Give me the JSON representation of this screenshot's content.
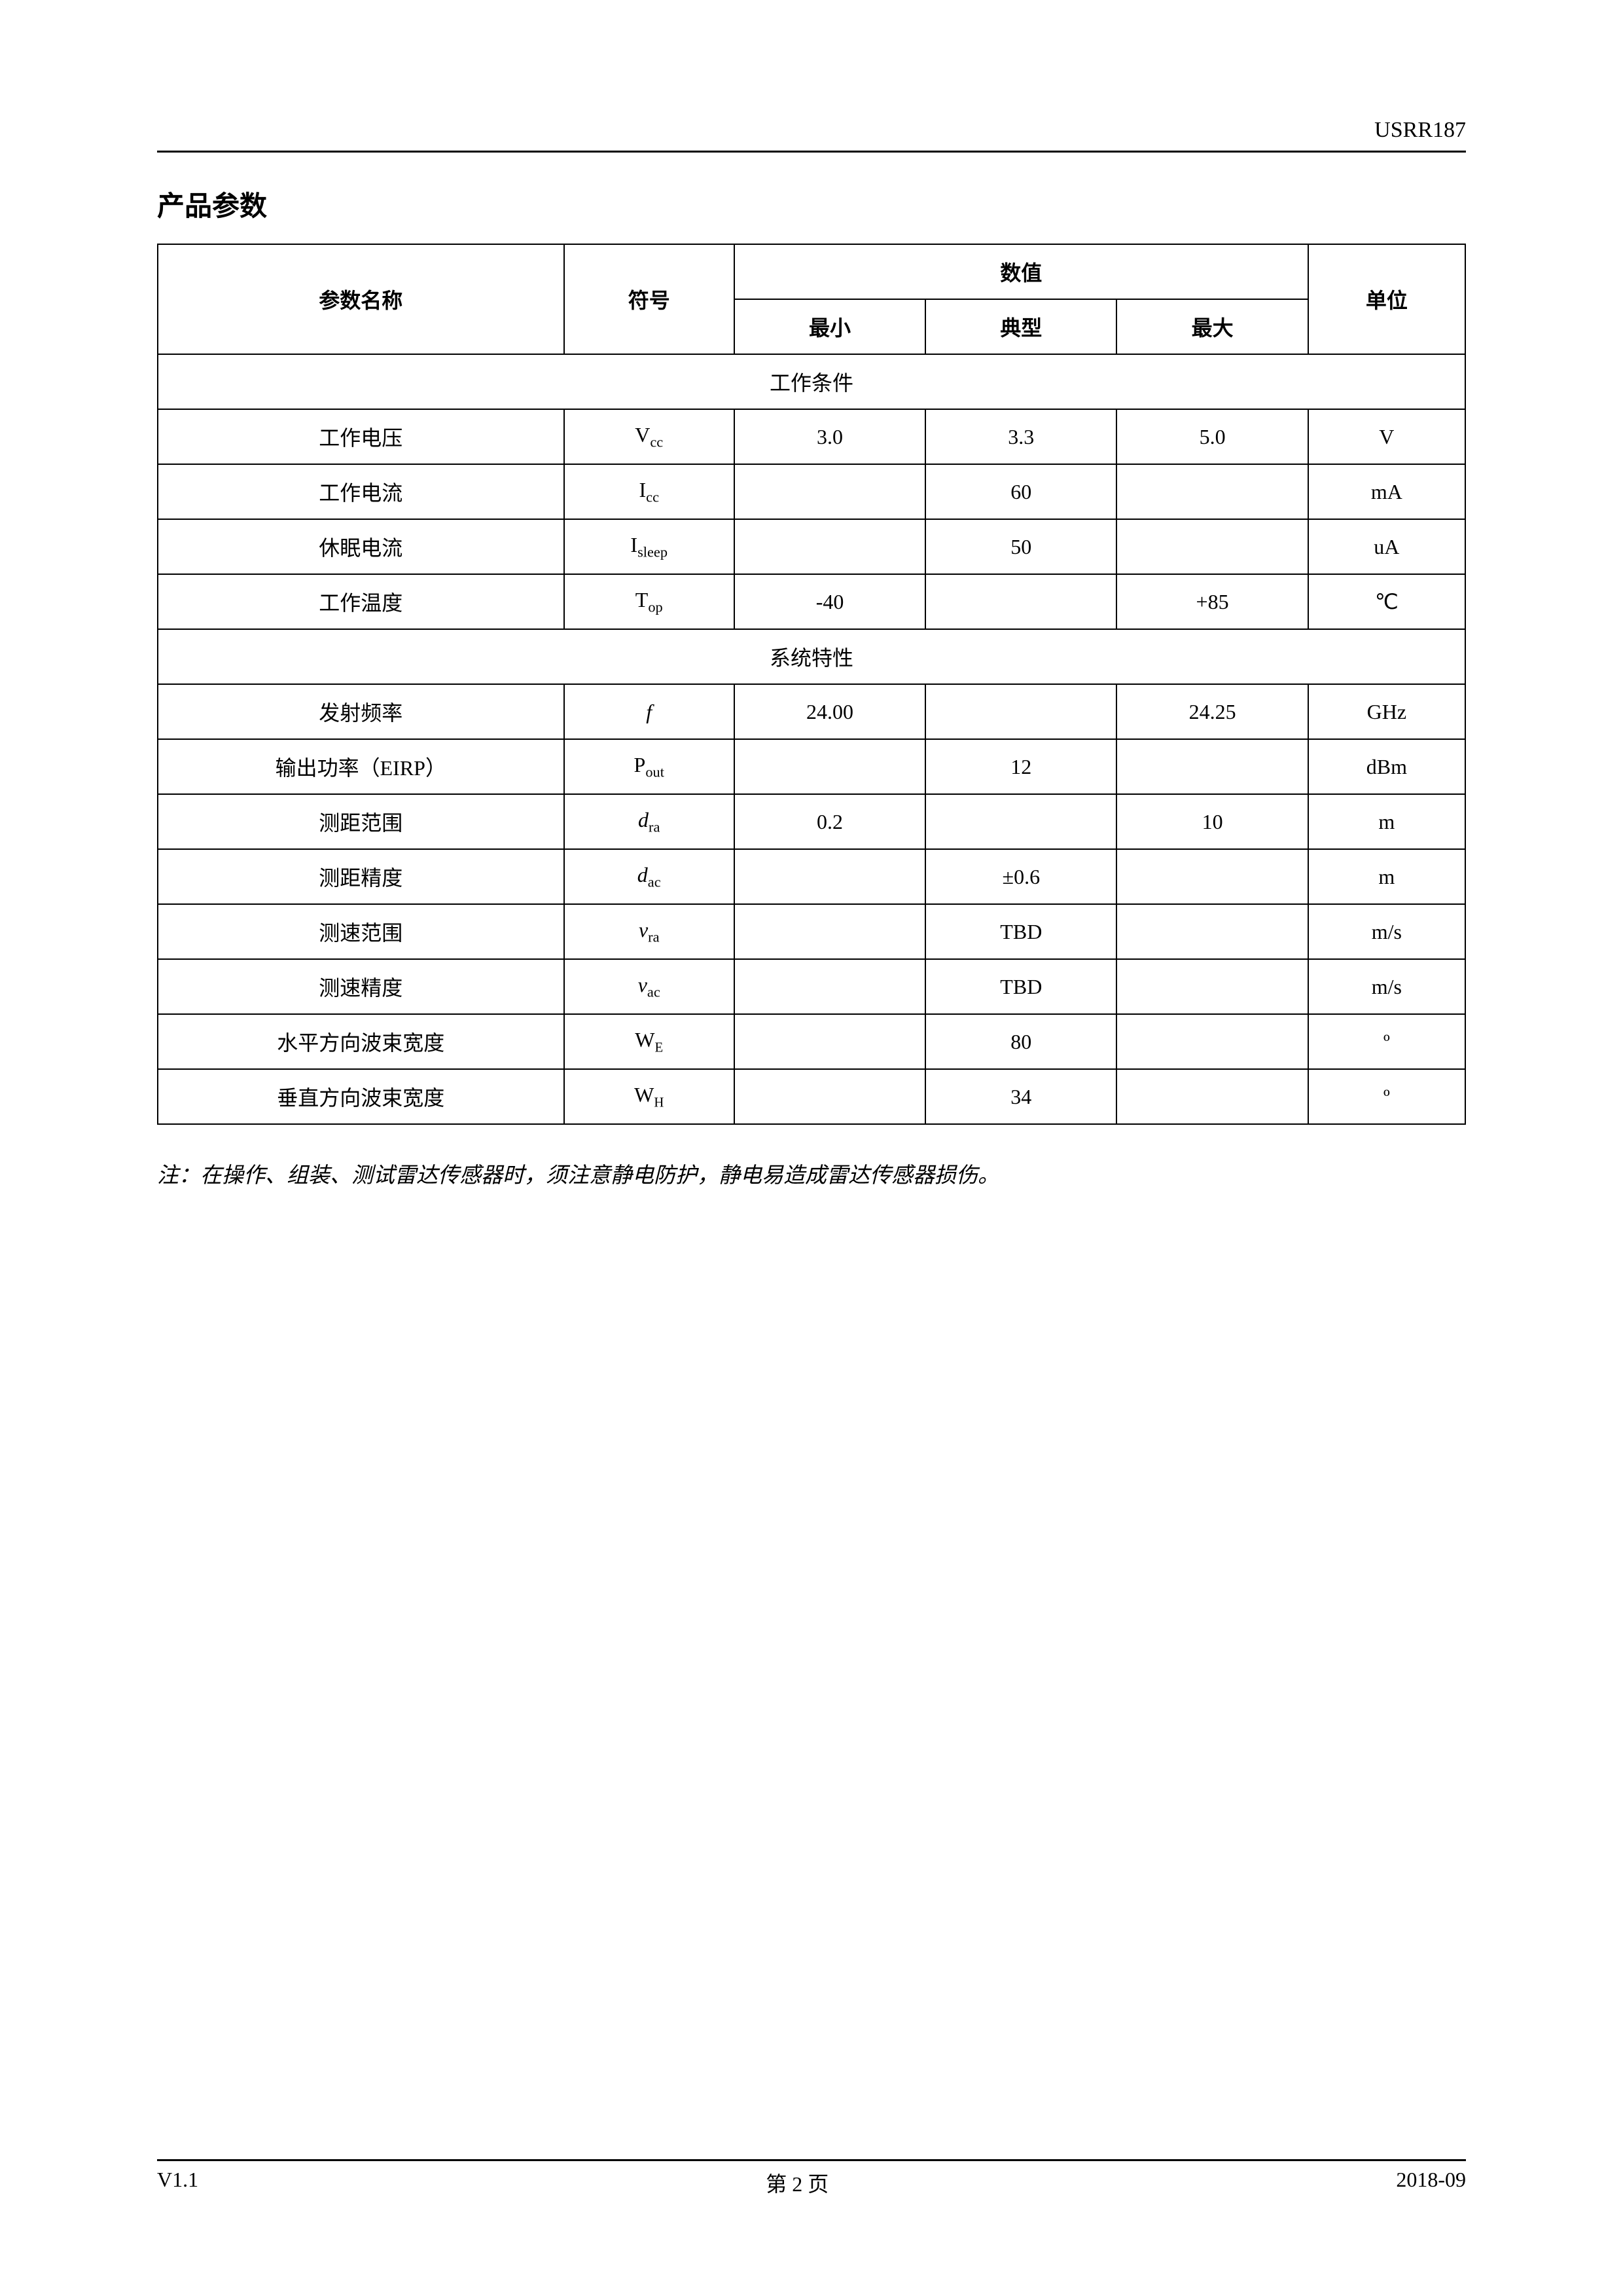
{
  "header": {
    "doc_id": "USRR187"
  },
  "section_title": "产品参数",
  "table": {
    "headers": {
      "param_name": "参数名称",
      "symbol": "符号",
      "value": "数值",
      "unit": "单位",
      "min": "最小",
      "typ": "典型",
      "max": "最大"
    },
    "section1_title": "工作条件",
    "section2_title": "系统特性",
    "rows1": {
      "r0": {
        "name": "工作电压",
        "sym_main": "V",
        "sym_sub": "cc",
        "min": "3.0",
        "typ": "3.3",
        "max": "5.0",
        "unit": "V"
      },
      "r1": {
        "name": "工作电流",
        "sym_main": "I",
        "sym_sub": "cc",
        "min": "",
        "typ": "60",
        "max": "",
        "unit": "mA"
      },
      "r2": {
        "name": "休眠电流",
        "sym_main": "I",
        "sym_sub": "sleep",
        "min": "",
        "typ": "50",
        "max": "",
        "unit": "uA"
      },
      "r3": {
        "name": "工作温度",
        "sym_main": "T",
        "sym_sub": "op",
        "min": "-40",
        "typ": "",
        "max": "+85",
        "unit": "℃"
      }
    },
    "rows2": {
      "r0": {
        "name": "发射频率",
        "sym_main": "f",
        "sym_sub": "",
        "sym_italic": true,
        "min": "24.00",
        "typ": "",
        "max": "24.25",
        "unit": "GHz"
      },
      "r1": {
        "name": "输出功率（EIRP）",
        "sym_main": "P",
        "sym_sub": "out",
        "min": "",
        "typ": "12",
        "max": "",
        "unit": "dBm"
      },
      "r2": {
        "name": "测距范围",
        "sym_main": "d",
        "sym_sub": "ra",
        "sym_italic": true,
        "min": "0.2",
        "typ": "",
        "max": "10",
        "unit": "m"
      },
      "r3": {
        "name": "测距精度",
        "sym_main": "d",
        "sym_sub": "ac",
        "sym_italic": true,
        "min": "",
        "typ": "±0.6",
        "max": "",
        "unit": "m"
      },
      "r4": {
        "name": "测速范围",
        "sym_main": "v",
        "sym_sub": "ra",
        "sym_italic": true,
        "min": "",
        "typ": "TBD",
        "max": "",
        "unit": "m/s"
      },
      "r5": {
        "name": "测速精度",
        "sym_main": "v",
        "sym_sub": "ac",
        "sym_italic": true,
        "min": "",
        "typ": "TBD",
        "max": "",
        "unit": "m/s"
      },
      "r6": {
        "name": "水平方向波束宽度",
        "sym_main": "W",
        "sym_sub": "E",
        "sub_small": true,
        "min": "",
        "typ": "80",
        "max": "",
        "unit": "º"
      },
      "r7": {
        "name": "垂直方向波束宽度",
        "sym_main": "W",
        "sym_sub": "H",
        "sub_small": true,
        "min": "",
        "typ": "34",
        "max": "",
        "unit": "º"
      }
    }
  },
  "note": "注：在操作、组装、测试雷达传感器时，须注意静电防护，静电易造成雷达传感器损伤。",
  "footer": {
    "version": "V1.1",
    "page": "第 2 页",
    "date": "2018-09"
  }
}
